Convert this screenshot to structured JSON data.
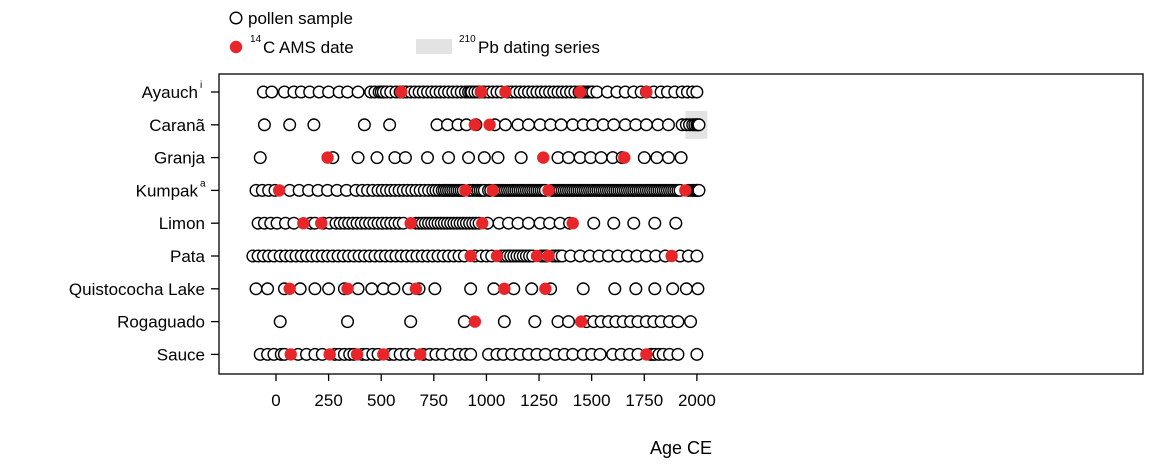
{
  "chart_data": {
    "type": "scatter",
    "title": "",
    "xlabel": "Age CE",
    "ylabel": "",
    "xlim": [
      -120,
      2060
    ],
    "x_ticks": [
      "0",
      "250",
      "500",
      "750",
      "1000",
      "1250",
      "1500",
      "1750",
      "2000"
    ],
    "x_tick_values": [
      0,
      250,
      500,
      750,
      1000,
      1250,
      1500,
      1750,
      2000
    ],
    "legend": {
      "placement": "top-left, above plot",
      "pollen_label": "pollen sample",
      "c14_sup": "14",
      "c14_label": "C AMS date",
      "pb_sup": "210",
      "pb_label": "Pb dating series"
    },
    "colors": {
      "c14": "#e8262a",
      "pb_band": "#e3e3e3",
      "outline": "#000000"
    },
    "sites": [
      {
        "name": "Ayauch",
        "sup": "i",
        "pollen": [
          -60,
          -20,
          40,
          85,
          120,
          160,
          205,
          250,
          300,
          340,
          390,
          450,
          470,
          490,
          500,
          510,
          525,
          545,
          570,
          590,
          605,
          620,
          640,
          660,
          680,
          700,
          720,
          740,
          760,
          780,
          800,
          820,
          840,
          860,
          880,
          900,
          915,
          925,
          930,
          945,
          960,
          975,
          990,
          1010,
          1030,
          1050,
          1070,
          1100,
          1120,
          1140,
          1160,
          1180,
          1200,
          1220,
          1240,
          1260,
          1280,
          1300,
          1320,
          1340,
          1360,
          1380,
          1400,
          1420,
          1440,
          1455,
          1465,
          1475,
          1485,
          1495,
          1505,
          1525,
          1575,
          1620,
          1660,
          1700,
          1735,
          1760,
          1795,
          1830,
          1860,
          1895,
          1930,
          1955,
          1980,
          2000
        ],
        "c14": [
          595,
          975,
          1090,
          1445,
          1760
        ],
        "pb_range": null
      },
      {
        "name": "Caranã",
        "sup": "",
        "pollen": [
          -55,
          65,
          180,
          420,
          540,
          765,
          815,
          865,
          905,
          950,
          1040,
          1090,
          1150,
          1200,
          1255,
          1305,
          1355,
          1410,
          1460,
          1505,
          1555,
          1605,
          1660,
          1710,
          1760,
          1815,
          1865,
          1930,
          1950,
          1965,
          1980,
          1990,
          2000,
          2005,
          2010
        ],
        "c14": [
          945,
          1015
        ],
        "pb_range": [
          1945,
          2050
        ]
      },
      {
        "name": "Granja",
        "sup": "",
        "pollen": [
          -75,
          270,
          390,
          480,
          565,
          615,
          720,
          820,
          915,
          990,
          1055,
          1165,
          1340,
          1390,
          1445,
          1495,
          1545,
          1600,
          1645,
          1750,
          1810,
          1865,
          1925
        ],
        "c14": [
          245,
          1270,
          1655
        ],
        "pb_range": null
      },
      {
        "name": "Kumpak",
        "sup": "a",
        "pollen": [
          -95,
          -65,
          -35,
          -5,
          65,
          110,
          155,
          200,
          245,
          290,
          335,
          380,
          410,
          435,
          460,
          485,
          505,
          525,
          545,
          565,
          585,
          605,
          625,
          645,
          665,
          685,
          705,
          725,
          745,
          760,
          775,
          790,
          800,
          810,
          820,
          830,
          840,
          850,
          860,
          870,
          880,
          890,
          920,
          935,
          950,
          960,
          970,
          980,
          990,
          1010,
          1020,
          1040,
          1050,
          1060,
          1070,
          1080,
          1090,
          1100,
          1110,
          1120,
          1130,
          1140,
          1150,
          1160,
          1170,
          1180,
          1190,
          1200,
          1210,
          1220,
          1230,
          1240,
          1250,
          1260,
          1270,
          1280,
          1310,
          1320,
          1330,
          1340,
          1350,
          1360,
          1370,
          1380,
          1390,
          1400,
          1410,
          1420,
          1430,
          1440,
          1450,
          1460,
          1470,
          1480,
          1490,
          1500,
          1510,
          1520,
          1530,
          1540,
          1550,
          1560,
          1570,
          1580,
          1590,
          1600,
          1610,
          1620,
          1630,
          1640,
          1650,
          1660,
          1670,
          1680,
          1690,
          1700,
          1710,
          1720,
          1730,
          1740,
          1750,
          1760,
          1770,
          1780,
          1790,
          1800,
          1810,
          1820,
          1830,
          1840,
          1850,
          1860,
          1870,
          1880,
          1890,
          1900,
          1910,
          1920,
          1960,
          1975,
          1985,
          1995,
          2000,
          2005,
          2010
        ],
        "c14": [
          15,
          900,
          1030,
          1295,
          1945
        ],
        "pb_range": null
      },
      {
        "name": "Limon",
        "sup": "",
        "pollen": [
          -85,
          -55,
          -25,
          5,
          45,
          85,
          165,
          185,
          225,
          255,
          285,
          305,
          325,
          345,
          365,
          385,
          405,
          425,
          445,
          465,
          485,
          505,
          525,
          545,
          565,
          585,
          605,
          665,
          680,
          695,
          710,
          725,
          740,
          755,
          770,
          785,
          800,
          815,
          830,
          845,
          860,
          875,
          890,
          905,
          920,
          935,
          950,
          965,
          1005,
          1060,
          1105,
          1150,
          1200,
          1255,
          1300,
          1350,
          1395,
          1510,
          1605,
          1700,
          1800,
          1900
        ],
        "c14": [
          130,
          215,
          640,
          980,
          1410
        ],
        "pb_range": null
      },
      {
        "name": "Pata",
        "sup": "",
        "pollen": [
          -110,
          -85,
          -60,
          -35,
          -10,
          20,
          45,
          70,
          95,
          120,
          145,
          170,
          195,
          220,
          245,
          270,
          295,
          320,
          345,
          370,
          395,
          420,
          445,
          470,
          495,
          520,
          545,
          570,
          595,
          620,
          645,
          670,
          695,
          720,
          745,
          770,
          795,
          820,
          845,
          870,
          895,
          945,
          975,
          1000,
          1025,
          1070,
          1085,
          1100,
          1115,
          1130,
          1145,
          1160,
          1175,
          1190,
          1205,
          1220,
          1260,
          1275,
          1285,
          1315,
          1330,
          1345,
          1360,
          1400,
          1445,
          1490,
          1535,
          1580,
          1625,
          1670,
          1715,
          1760,
          1805,
          1850,
          1920,
          1960,
          2000
        ],
        "c14": [
          925,
          1050,
          1240,
          1295,
          1880
        ],
        "pb_range": null
      },
      {
        "name": "Quistococha Lake",
        "sup": "",
        "pollen": [
          -95,
          -40,
          40,
          115,
          185,
          250,
          325,
          390,
          455,
          510,
          560,
          630,
          680,
          755,
          925,
          1035,
          1130,
          1215,
          1305,
          1460,
          1610,
          1710,
          1800,
          1885,
          1950,
          2005
        ],
        "c14": [
          65,
          340,
          665,
          1085,
          1280
        ],
        "pb_range": null
      },
      {
        "name": "Rogaguado",
        "sup": "",
        "pollen": [
          20,
          340,
          640,
          895,
          1085,
          1230,
          1340,
          1390,
          1475,
          1510,
          1545,
          1580,
          1615,
          1650,
          1685,
          1720,
          1760,
          1795,
          1830,
          1870,
          1910,
          1970
        ],
        "c14": [
          945,
          1450
        ],
        "pb_range": null
      },
      {
        "name": "Sauce",
        "sup": "",
        "pollen": [
          -75,
          -40,
          -10,
          25,
          40,
          105,
          145,
          185,
          220,
          280,
          300,
          325,
          350,
          370,
          410,
          430,
          460,
          485,
          540,
          560,
          590,
          620,
          650,
          700,
          730,
          760,
          790,
          830,
          870,
          900,
          925,
          1010,
          1050,
          1080,
          1120,
          1160,
          1200,
          1240,
          1280,
          1330,
          1370,
          1410,
          1460,
          1500,
          1540,
          1600,
          1640,
          1680,
          1720,
          1780,
          1790,
          1800,
          1820,
          1840,
          1870,
          1910,
          2000
        ],
        "c14": [
          70,
          255,
          385,
          510,
          685,
          1760
        ],
        "pb_range": null
      }
    ]
  }
}
